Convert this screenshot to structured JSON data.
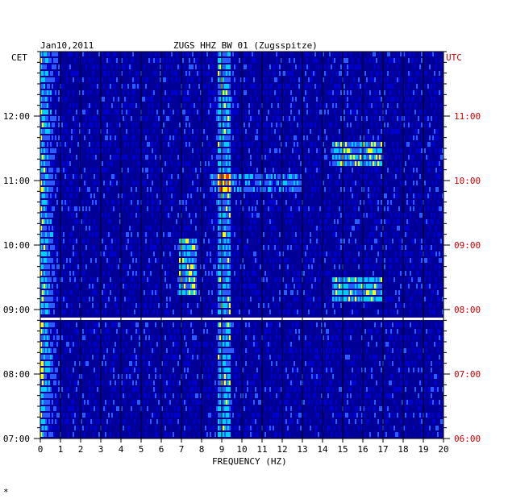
{
  "chart_data": {
    "type": "heatmap",
    "date": "Jan10,2011",
    "title": "ZUGS HHZ BW 01 (Zugsspitze)",
    "left_timezone": "CET",
    "right_timezone": "UTC",
    "xlabel": "FREQUENCY (HZ)",
    "xlim": [
      0,
      20
    ],
    "x_ticks": [
      "0",
      "1",
      "2",
      "3",
      "4",
      "5",
      "6",
      "7",
      "8",
      "9",
      "10",
      "11",
      "12",
      "13",
      "14",
      "15",
      "16",
      "17",
      "18",
      "19",
      "20"
    ],
    "cet_ticks": [
      "12:00",
      "11:00",
      "10:00",
      "09:00",
      "08:00",
      "07:00"
    ],
    "utc_ticks": [
      "11:00",
      "10:00",
      "09:00",
      "08:00",
      "07:00",
      "06:00"
    ],
    "time_range_cet": [
      "07:00",
      "12:50"
    ],
    "colors": {
      "background": "#000099",
      "low": "#0000cc",
      "mid": "#2a5cff",
      "high": "#00ccff",
      "peak": "#ffff00",
      "max": "#ff3300",
      "gap": "#ffffff",
      "utc_text": "#cc0000"
    },
    "energy_bands_hz": [
      {
        "name": "low-frequency noise",
        "range": [
          0,
          1
        ]
      },
      {
        "name": "9 Hz line",
        "range": [
          8.8,
          9.4
        ]
      },
      {
        "name": "7 Hz burst 09:30-10:00",
        "range": [
          7,
          7.8
        ]
      },
      {
        "name": "15-17 Hz events",
        "range": [
          14.5,
          17
        ]
      }
    ],
    "footer_mark": "*"
  }
}
